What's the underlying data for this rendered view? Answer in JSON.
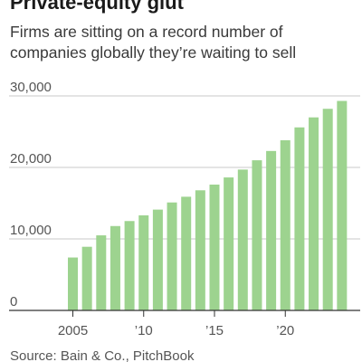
{
  "title": "Private-equity glut",
  "subtitle": "Firms are sitting on a record number of companies globally they’re waiting to sell",
  "source": "Source: Bain & Co., PitchBook",
  "colors": {
    "bar": "#9dd38f",
    "axis": "#333333",
    "grid": "#c8c8c8",
    "tick_text": "#555555"
  },
  "chart_data": {
    "type": "bar",
    "title": "Private-equity glut",
    "subtitle": "Firms are sitting on a record number of companies globally they’re waiting to sell",
    "xlabel": "",
    "ylabel": "",
    "categories": [
      "2005",
      "2006",
      "2007",
      "2008",
      "2009",
      "2010",
      "2011",
      "2012",
      "2013",
      "2014",
      "2015",
      "2016",
      "2017",
      "2018",
      "2019",
      "2020",
      "2021",
      "2022",
      "2023",
      "2024"
    ],
    "values": [
      7400,
      8900,
      10500,
      11800,
      12500,
      13300,
      14100,
      15100,
      15900,
      16800,
      17600,
      18600,
      19700,
      21000,
      22300,
      23800,
      25600,
      27000,
      28200,
      29300
    ],
    "ylim": [
      0,
      30000
    ],
    "yticks": [
      0,
      10000,
      20000,
      30000
    ],
    "ytick_labels": [
      "0",
      "10,000",
      "20,000",
      "30,000"
    ],
    "xtick_labels": [
      {
        "category": "2005",
        "label": "2005"
      },
      {
        "category": "2010",
        "label": "’10"
      },
      {
        "category": "2015",
        "label": "’15"
      },
      {
        "category": "2020",
        "label": "’20"
      }
    ],
    "grid": true,
    "legend": "none"
  }
}
